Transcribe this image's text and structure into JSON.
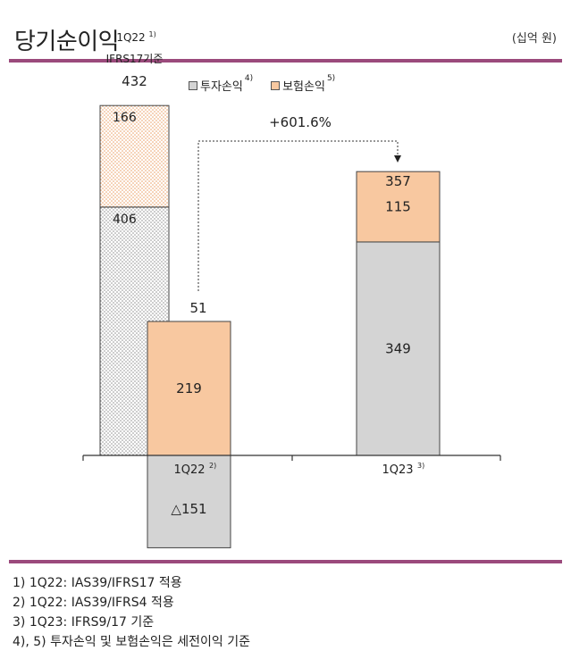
{
  "title": "당기순이익",
  "unit": "(십억 원)",
  "legend": [
    {
      "label": "투자손익",
      "sup": "4)",
      "color": "#d4d4d4"
    },
    {
      "label": "보험손익",
      "sup": "5)",
      "color": "#f8c8a0"
    }
  ],
  "chart_data": {
    "type": "bar",
    "categories": [
      "1Q22",
      "1Q23"
    ],
    "category_sups": [
      "2)",
      "3)"
    ],
    "series": [
      {
        "name": "투자손익",
        "values": [
          -151,
          349
        ],
        "color": "#d4d4d4"
      },
      {
        "name": "보험손익",
        "values": [
          219,
          115
        ],
        "color": "#f8c8a0"
      }
    ],
    "value_labels": {
      "1Q22": [
        "△151",
        "219"
      ],
      "1Q23": [
        "349",
        "115"
      ]
    },
    "totals": [
      "51",
      "357"
    ],
    "restated": {
      "label_line1": "1Q22",
      "label_sup": "1)",
      "label_line2": "IFRS17기준",
      "total": "432",
      "investment": 406,
      "insurance": 166,
      "investment_label": "406",
      "insurance_label": "166"
    },
    "growth_annotation": "+601.6%"
  },
  "notes": [
    "1) 1Q22: IAS39/IFRS17 적용",
    "2) 1Q22: IAS39/IFRS4 적용",
    "3) 1Q23: IFRS9/17 기준",
    "4), 5) 투자손익 및 보험손익은 세전이익 기준"
  ]
}
